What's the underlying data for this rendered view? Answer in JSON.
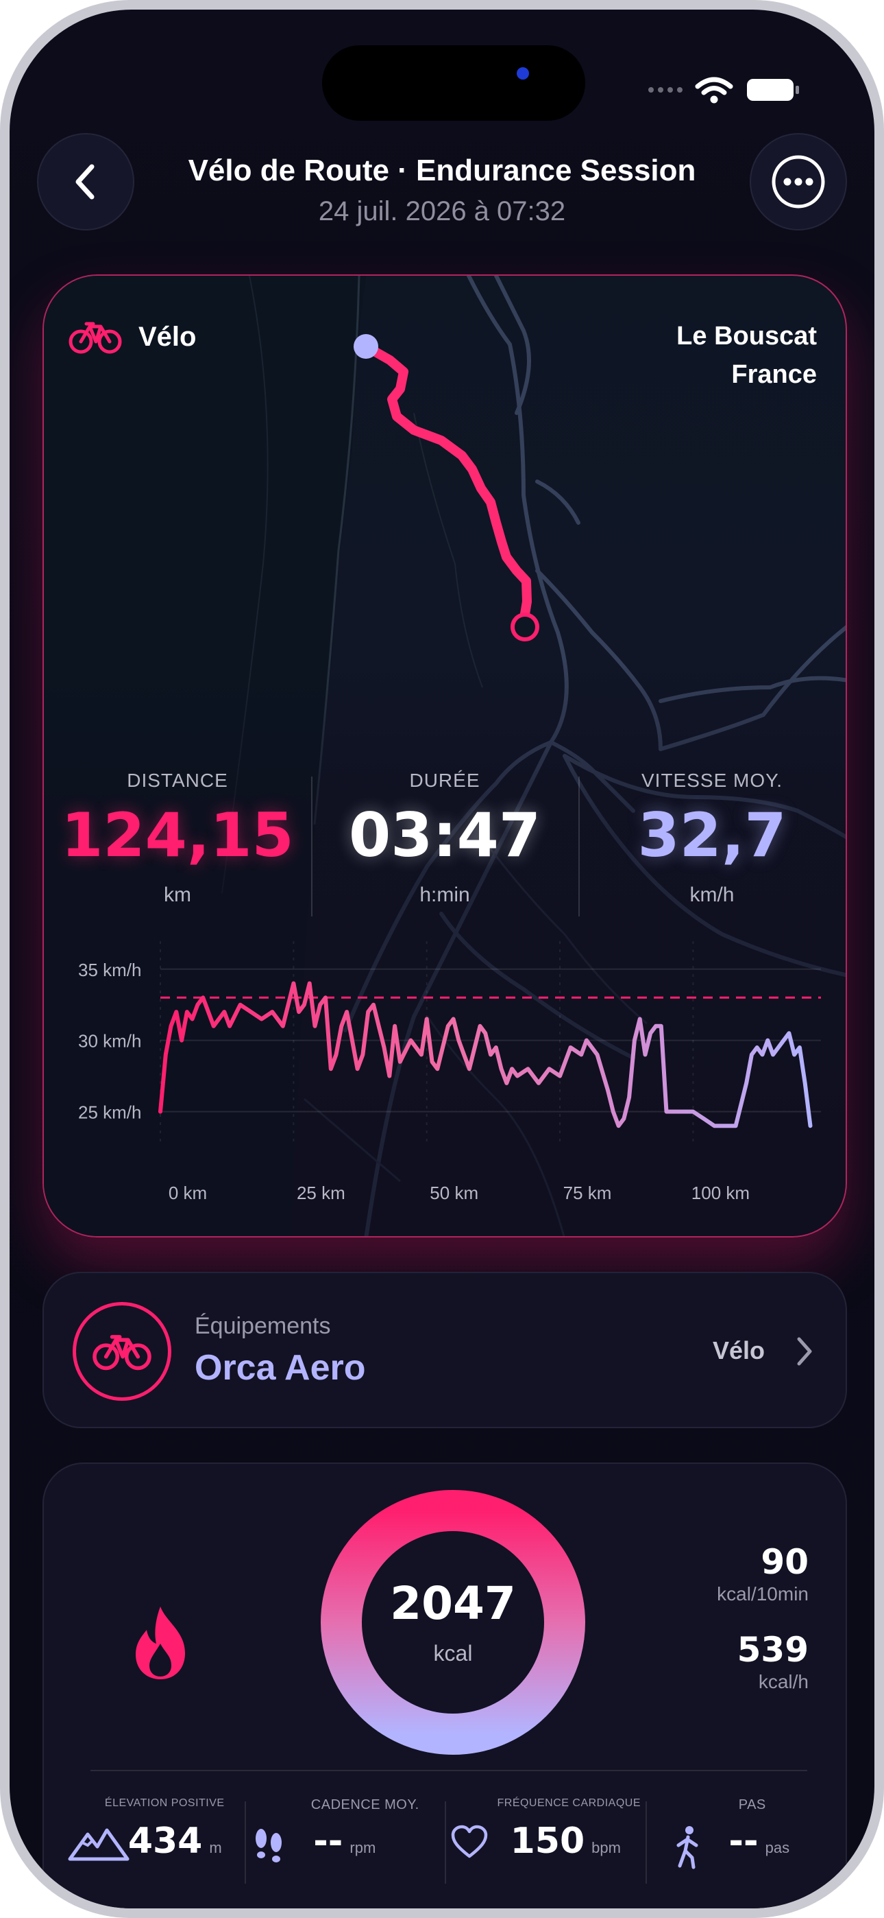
{
  "header": {
    "title": "Vélo de Route · Endurance Session",
    "subtitle": "24 juil. 2026 à 07:32"
  },
  "map": {
    "sport_label": "Vélo",
    "location_city": "Le Bouscat",
    "location_country": "France"
  },
  "stats": [
    {
      "label": "DISTANCE",
      "value": "124,15",
      "unit": "km",
      "color": "#ff1f6e"
    },
    {
      "label": "DURÉE",
      "value": "03:47",
      "unit": "h:min",
      "color": "#ffffff"
    },
    {
      "label": "VITESSE MOY.",
      "value": "32,7",
      "unit": "km/h",
      "color": "#b3b4ff"
    }
  ],
  "chart_data": {
    "type": "line",
    "title": "",
    "xlabel": "",
    "ylabel": "",
    "x_tick_labels": [
      "0 km",
      "25 km",
      "50 km",
      "75 km",
      "100 km"
    ],
    "y_tick_labels": [
      "35 km/h",
      "30 km/h",
      "25 km/h"
    ],
    "xlim": [
      0,
      124
    ],
    "ylim": [
      23,
      36
    ],
    "reference_line": 33,
    "x": [
      0,
      1,
      2,
      3,
      4,
      5,
      6,
      7,
      8,
      9,
      10,
      12,
      13,
      15,
      17,
      19,
      21,
      23,
      25,
      26,
      27,
      28,
      29,
      30,
      31,
      32,
      33,
      34,
      35,
      36,
      37,
      38,
      39,
      40,
      41,
      42,
      43,
      44,
      45,
      47,
      49,
      50,
      51,
      52,
      53,
      54,
      55,
      56,
      57,
      58,
      60,
      61,
      62,
      63,
      64,
      65,
      66,
      67,
      69,
      71,
      73,
      75,
      77,
      79,
      80,
      82,
      84,
      85,
      86,
      87,
      88,
      89,
      90,
      91,
      92,
      93,
      94,
      95,
      96,
      97,
      98,
      99,
      100,
      102,
      104,
      106,
      108,
      110,
      111,
      112,
      113,
      114,
      115,
      116,
      117,
      118,
      119,
      120,
      121,
      122
    ],
    "y": [
      25,
      29,
      31,
      32,
      30,
      32,
      31.5,
      32.5,
      33,
      32,
      31,
      32,
      31,
      32.5,
      32,
      31.5,
      32,
      31,
      34,
      32,
      32.5,
      34,
      31,
      32.5,
      33,
      28,
      29,
      31,
      32,
      30,
      28,
      29,
      32,
      32.5,
      31,
      29.5,
      27.5,
      31,
      28.5,
      30,
      29,
      31.5,
      28.5,
      28,
      29.5,
      31,
      31.5,
      30,
      29,
      28,
      31,
      30.5,
      29,
      29.5,
      28,
      27,
      28,
      27.5,
      28,
      27,
      28,
      27.5,
      29.5,
      29,
      30,
      29,
      26.5,
      25,
      24,
      24.5,
      26,
      30,
      31.5,
      29,
      30.5,
      31,
      31,
      25,
      25,
      25,
      25,
      25,
      25,
      24.5,
      24,
      24,
      24,
      27,
      29,
      29.5,
      29,
      30,
      29,
      29.5,
      30,
      30.5,
      29,
      29.5,
      27,
      24
    ]
  },
  "equipment": {
    "kicker": "Équipements",
    "name": "Orca Aero",
    "type": "Vélo"
  },
  "calories": {
    "value": "2047",
    "unit": "kcal",
    "rate1_value": "90",
    "rate1_unit": "kcal/10min",
    "rate2_value": "539",
    "rate2_unit": "kcal/h"
  },
  "metrics": [
    {
      "label": "ÉLEVATION POSITIVE",
      "value": "434",
      "unit": "m",
      "icon": "mountain-icon"
    },
    {
      "label": "CADENCE MOY.",
      "value": "--",
      "unit": "rpm",
      "icon": "footsteps-icon"
    },
    {
      "label": "FRÉQUENCE CARDIAQUE",
      "value": "150",
      "unit": "bpm",
      "icon": "heart-icon"
    },
    {
      "label": "PAS",
      "value": "--",
      "unit": "pas",
      "icon": "walker-icon"
    }
  ],
  "colors": {
    "accent": "#ff1f6e",
    "lavender": "#b3b4ff",
    "background": "#0b0b18"
  }
}
